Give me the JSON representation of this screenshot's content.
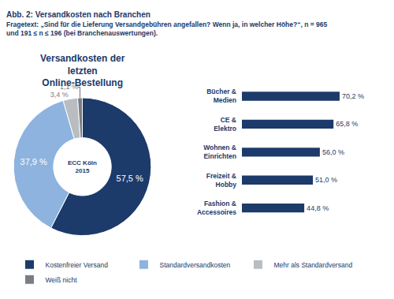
{
  "title": "Abb. 2: Versandkosten nach Branchen",
  "subtitle": "Fragetext: „Sind für die Lieferung Versandgebühren angefallen? Wenn ja, in welcher Höhe?“, n = 965 und 191 ≤ n ≤ 196 (bei Branchenauswertungen).",
  "chart_data": [
    {
      "type": "pie",
      "title": "Versandkosten der letzten Online-Bestellung",
      "categories": [
        "Kostenfreier Versand",
        "Standardversandkosten",
        "Mehr als Standardversand",
        "Weiß nicht"
      ],
      "values": [
        57.5,
        37.9,
        3.4,
        1.1
      ],
      "value_labels": [
        "57,5 %",
        "37,9 %",
        "3,4 %",
        "1,1 %"
      ],
      "colors": [
        "#1c3a6a",
        "#8db3de",
        "#b9bdc2",
        "#7a7d82"
      ],
      "data_labels": true,
      "legend": "bottom",
      "annotations": [
        "ECC Köln",
        "2015"
      ]
    },
    {
      "type": "bar",
      "orientation": "horizontal",
      "categories": [
        "Bücher & Medien",
        "CE & Elektro",
        "Wohnen & Einrichten",
        "Freizeit & Hobby",
        "Fashion & Accessoires"
      ],
      "values": [
        70.2,
        65.8,
        56.0,
        51.0,
        44.8
      ],
      "value_labels": [
        "70,2 %",
        "65,8 %",
        "56,0 %",
        "51,0 %",
        "44,8 %"
      ],
      "color": "#1c3a6a",
      "data_labels": true,
      "tick_labels": "y"
    }
  ]
}
